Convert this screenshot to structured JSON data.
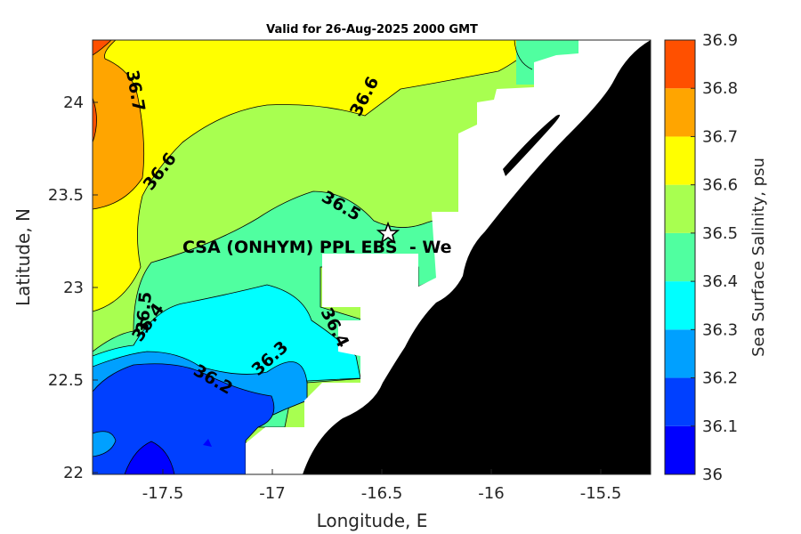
{
  "title": "Valid for 26-Aug-2025 2000 GMT",
  "x_axis": {
    "label": "Longitude, E",
    "ticks": [
      "-17.5",
      "-17",
      "-16.5",
      "-16",
      "-15.5"
    ]
  },
  "y_axis": {
    "label": "Latitude, N",
    "ticks": [
      "24",
      "23.5",
      "23",
      "22.5",
      "22"
    ]
  },
  "colorbar": {
    "label": "Sea Surface Salinity, psu",
    "ticks": [
      "36.9",
      "36.8",
      "36.7",
      "36.6",
      "36.5",
      "36.4",
      "36.3",
      "36.2",
      "36.1",
      "36"
    ],
    "colors": [
      "#0000ff",
      "#0040ff",
      "#00a0ff",
      "#00ffff",
      "#50ffa0",
      "#a8ff50",
      "#ffff00",
      "#ffa500",
      "#ff5000"
    ]
  },
  "contour_labels": [
    "36.7",
    "36.6",
    "36.6",
    "36.5",
    "36.5",
    "36.4",
    "36.4",
    "36.3",
    "36.2"
  ],
  "site": {
    "label": "CSA (ONHYM) PPL EBS  - We",
    "marker": "star-icon"
  },
  "land_color": "#000000",
  "mask_color": "#ffffff"
}
